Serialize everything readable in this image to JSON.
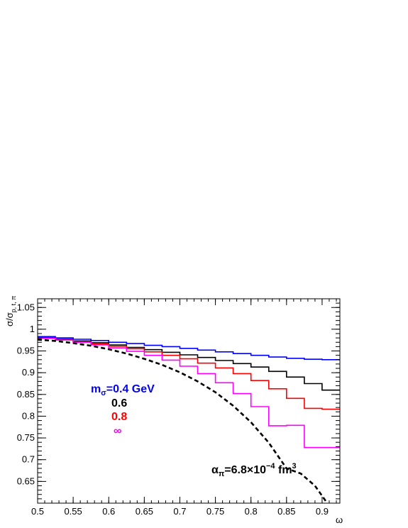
{
  "chart_data": {
    "type": "line",
    "xlabel": "ω",
    "ylabel": {
      "main": "σ/σ",
      "sub": "p, t, π"
    },
    "xlim": [
      0.5,
      0.925
    ],
    "ylim": [
      0.6,
      1.07
    ],
    "xticks": [
      0.5,
      0.55,
      0.6,
      0.65,
      0.7,
      0.75,
      0.8,
      0.85,
      0.9
    ],
    "xtick_labels": [
      "0.5",
      "0.55",
      "0.6",
      "0.65",
      "0.7",
      "0.75",
      "0.8",
      "0.85",
      "0.9"
    ],
    "yticks": [
      0.65,
      0.7,
      0.75,
      0.8,
      0.85,
      0.9,
      0.95,
      1.0,
      1.05
    ],
    "ytick_labels": [
      "0.65",
      "0.7",
      "0.75",
      "0.8",
      "0.85",
      "0.9",
      "0.95",
      "1",
      "1.05"
    ],
    "grid": false,
    "legend": {
      "placement": "center-left",
      "title": {
        "prefix": "m",
        "sub": "σ",
        "suffix": "=0.4 GeV",
        "color": "#0000ff"
      },
      "entries": [
        {
          "text": "0.6",
          "color": "#000000"
        },
        {
          "text": "0.8",
          "color": "#ff0000"
        },
        {
          "text": "∞",
          "color": "#ff00ff"
        }
      ]
    },
    "annotation": {
      "prefix": "α",
      "sub": "π",
      "mid": "=6.8×10",
      "sup": "−4",
      "suffix": " fm",
      "sup2": "3"
    },
    "bin_edges": [
      0.5,
      0.525,
      0.55,
      0.575,
      0.6,
      0.625,
      0.65,
      0.675,
      0.7,
      0.725,
      0.75,
      0.775,
      0.8,
      0.825,
      0.85,
      0.875,
      0.9,
      0.925
    ],
    "series": [
      {
        "color": "#0000ff",
        "style": "step",
        "values": [
          0.983,
          0.98,
          0.977,
          0.974,
          0.97,
          0.967,
          0.963,
          0.96,
          0.956,
          0.952,
          0.948,
          0.944,
          0.94,
          0.936,
          0.933,
          0.931,
          0.93
        ]
      },
      {
        "color": "#000000",
        "style": "step",
        "values": [
          0.98,
          0.977,
          0.973,
          0.969,
          0.964,
          0.958,
          0.953,
          0.947,
          0.941,
          0.935,
          0.928,
          0.921,
          0.913,
          0.903,
          0.89,
          0.875,
          0.86
        ]
      },
      {
        "color": "#ff0000",
        "style": "step",
        "values": [
          0.979,
          0.975,
          0.971,
          0.966,
          0.961,
          0.955,
          0.948,
          0.94,
          0.932,
          0.922,
          0.911,
          0.898,
          0.882,
          0.863,
          0.841,
          0.818,
          0.816
        ]
      },
      {
        "color": "#ff00ff",
        "style": "step",
        "values": [
          0.979,
          0.975,
          0.97,
          0.964,
          0.957,
          0.949,
          0.94,
          0.929,
          0.915,
          0.898,
          0.877,
          0.852,
          0.822,
          0.778,
          0.779,
          0.728,
          0.728
        ]
      },
      {
        "color": "#000000",
        "style": "dashed",
        "x": [
          0.5,
          0.525,
          0.55,
          0.575,
          0.6,
          0.625,
          0.65,
          0.675,
          0.7,
          0.725,
          0.75,
          0.775,
          0.8,
          0.825,
          0.85,
          0.87,
          0.89,
          0.905
        ],
        "y": [
          0.976,
          0.973,
          0.968,
          0.962,
          0.954,
          0.944,
          0.932,
          0.918,
          0.901,
          0.88,
          0.855,
          0.824,
          0.786,
          0.739,
          0.68,
          0.668,
          0.64,
          0.605
        ]
      }
    ]
  }
}
